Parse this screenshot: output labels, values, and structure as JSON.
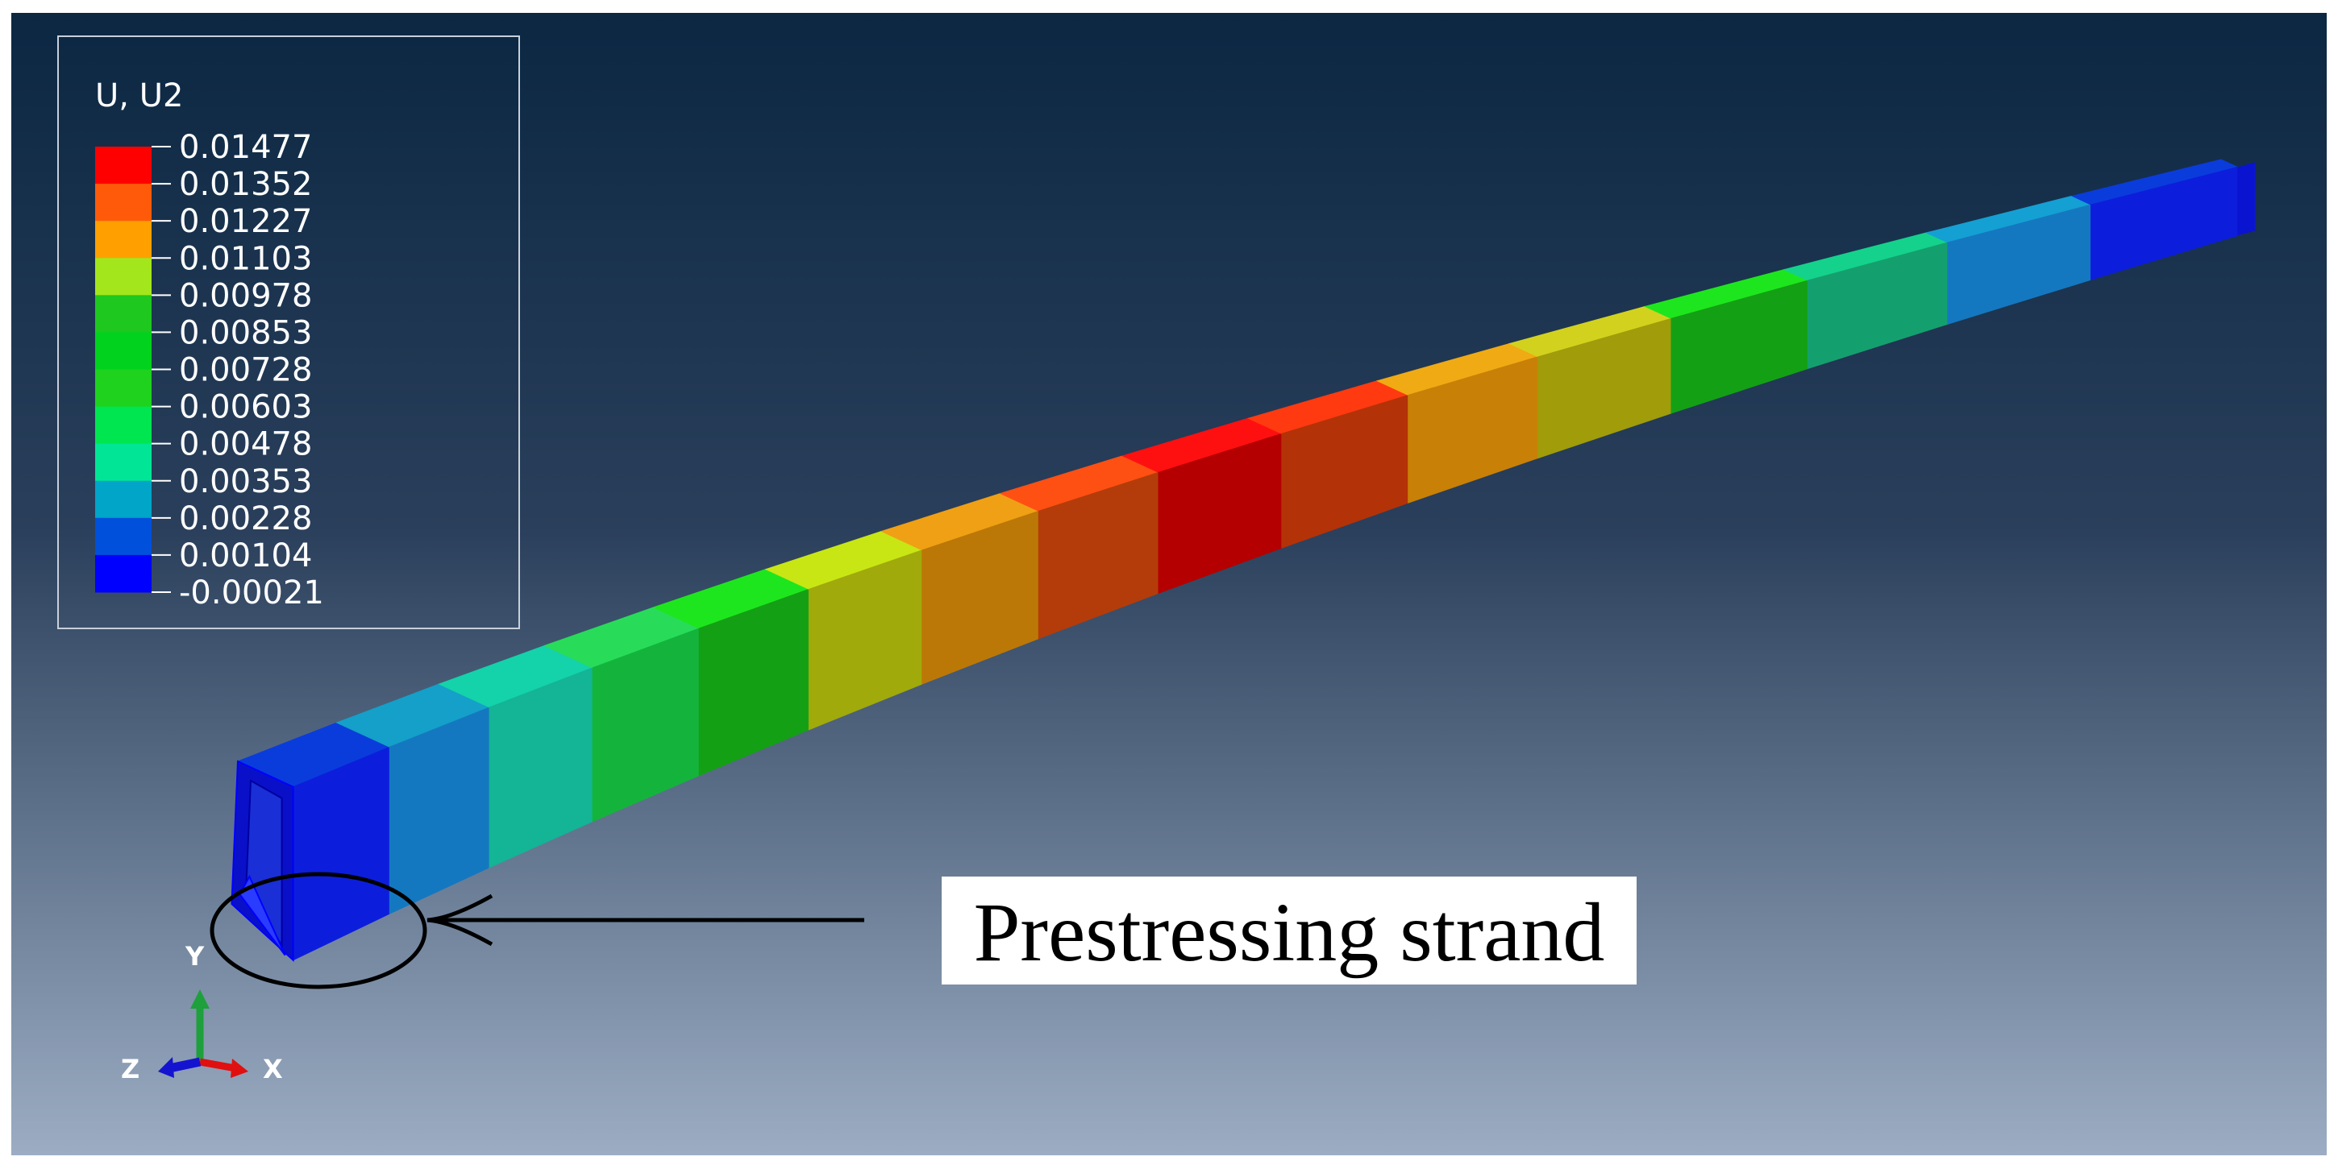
{
  "legend": {
    "title": "U, U2",
    "labels": [
      "0.01477",
      "0.01352",
      "0.01227",
      "0.01103",
      "0.00978",
      "0.00853",
      "0.00728",
      "0.00603",
      "0.00478",
      "0.00353",
      "0.00228",
      "0.00104",
      "-0.00021"
    ],
    "band_colors": [
      "#ff0000",
      "#ff5a0a",
      "#ffa000",
      "#a4e61c",
      "#1ec81e",
      "#00d21e",
      "#1ed21e",
      "#00e650",
      "#00e696",
      "#00a5c8",
      "#0050dc",
      "#0000ff"
    ]
  },
  "callout": {
    "label": "Prestressing strand"
  },
  "triad": {
    "y": "Y",
    "x": "X",
    "z": "Z",
    "colors": {
      "y": "#1ea03c",
      "x": "#e01010",
      "z": "#1414d0"
    }
  },
  "beam": {
    "segments": [
      {
        "top": "#0a3cdc",
        "side": "#0c1edc",
        "value": -0.00021
      },
      {
        "top": "#14a0c8",
        "side": "#1478c0",
        "value": 0.00104
      },
      {
        "top": "#14d2aa",
        "side": "#14b496",
        "value": 0.00353
      },
      {
        "top": "#28dc5a",
        "side": "#14b43c",
        "value": 0.00603
      },
      {
        "top": "#1ee61e",
        "side": "#14a014",
        "value": 0.00853
      },
      {
        "top": "#c8e614",
        "side": "#a0aa0a",
        "value": 0.00978
      },
      {
        "top": "#f0a014",
        "side": "#bc7806",
        "value": 0.01103
      },
      {
        "top": "#ff5014",
        "side": "#b43c0a",
        "value": 0.01352
      },
      {
        "top": "#ff1010",
        "side": "#b40000",
        "value": 0.01477
      },
      {
        "top": "#ff3a10",
        "side": "#b43208",
        "value": 0.01352
      },
      {
        "top": "#f0aa14",
        "side": "#c88006",
        "value": 0.01103
      },
      {
        "top": "#d2d21e",
        "side": "#a09c0a",
        "value": 0.00978
      },
      {
        "top": "#1ee61e",
        "side": "#14a014",
        "value": 0.00853
      },
      {
        "top": "#14d28c",
        "side": "#14a06e",
        "value": 0.00478
      },
      {
        "top": "#14a0d2",
        "side": "#1478c0",
        "value": 0.00228
      },
      {
        "top": "#0a3cdc",
        "side": "#0c1edc",
        "value": -0.00021
      }
    ]
  }
}
